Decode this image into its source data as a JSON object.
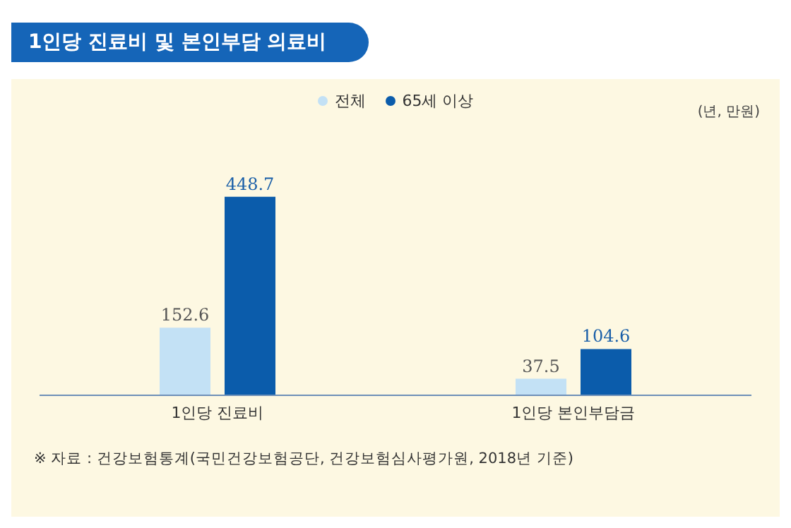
{
  "chart_data": {
    "type": "bar",
    "title": "1인당 진료비 및 본인부담 의료비",
    "categories": [
      "1인당 진료비",
      "1인당 본인부담금"
    ],
    "series": [
      {
        "name": "전체",
        "color": "#c3e1f5",
        "values": [
          152.6,
          37.5
        ]
      },
      {
        "name": "65세 이상",
        "color": "#0b5cab",
        "values": [
          448.7,
          104.6
        ]
      }
    ],
    "data_labels": true,
    "legend": "top",
    "grid": false,
    "annotations": [
      "(년, 만원)",
      "※ 자료 : 건강보험통계(국민건강보험공단, 건강보험심사평가원, 2018년 기준)"
    ]
  }
}
